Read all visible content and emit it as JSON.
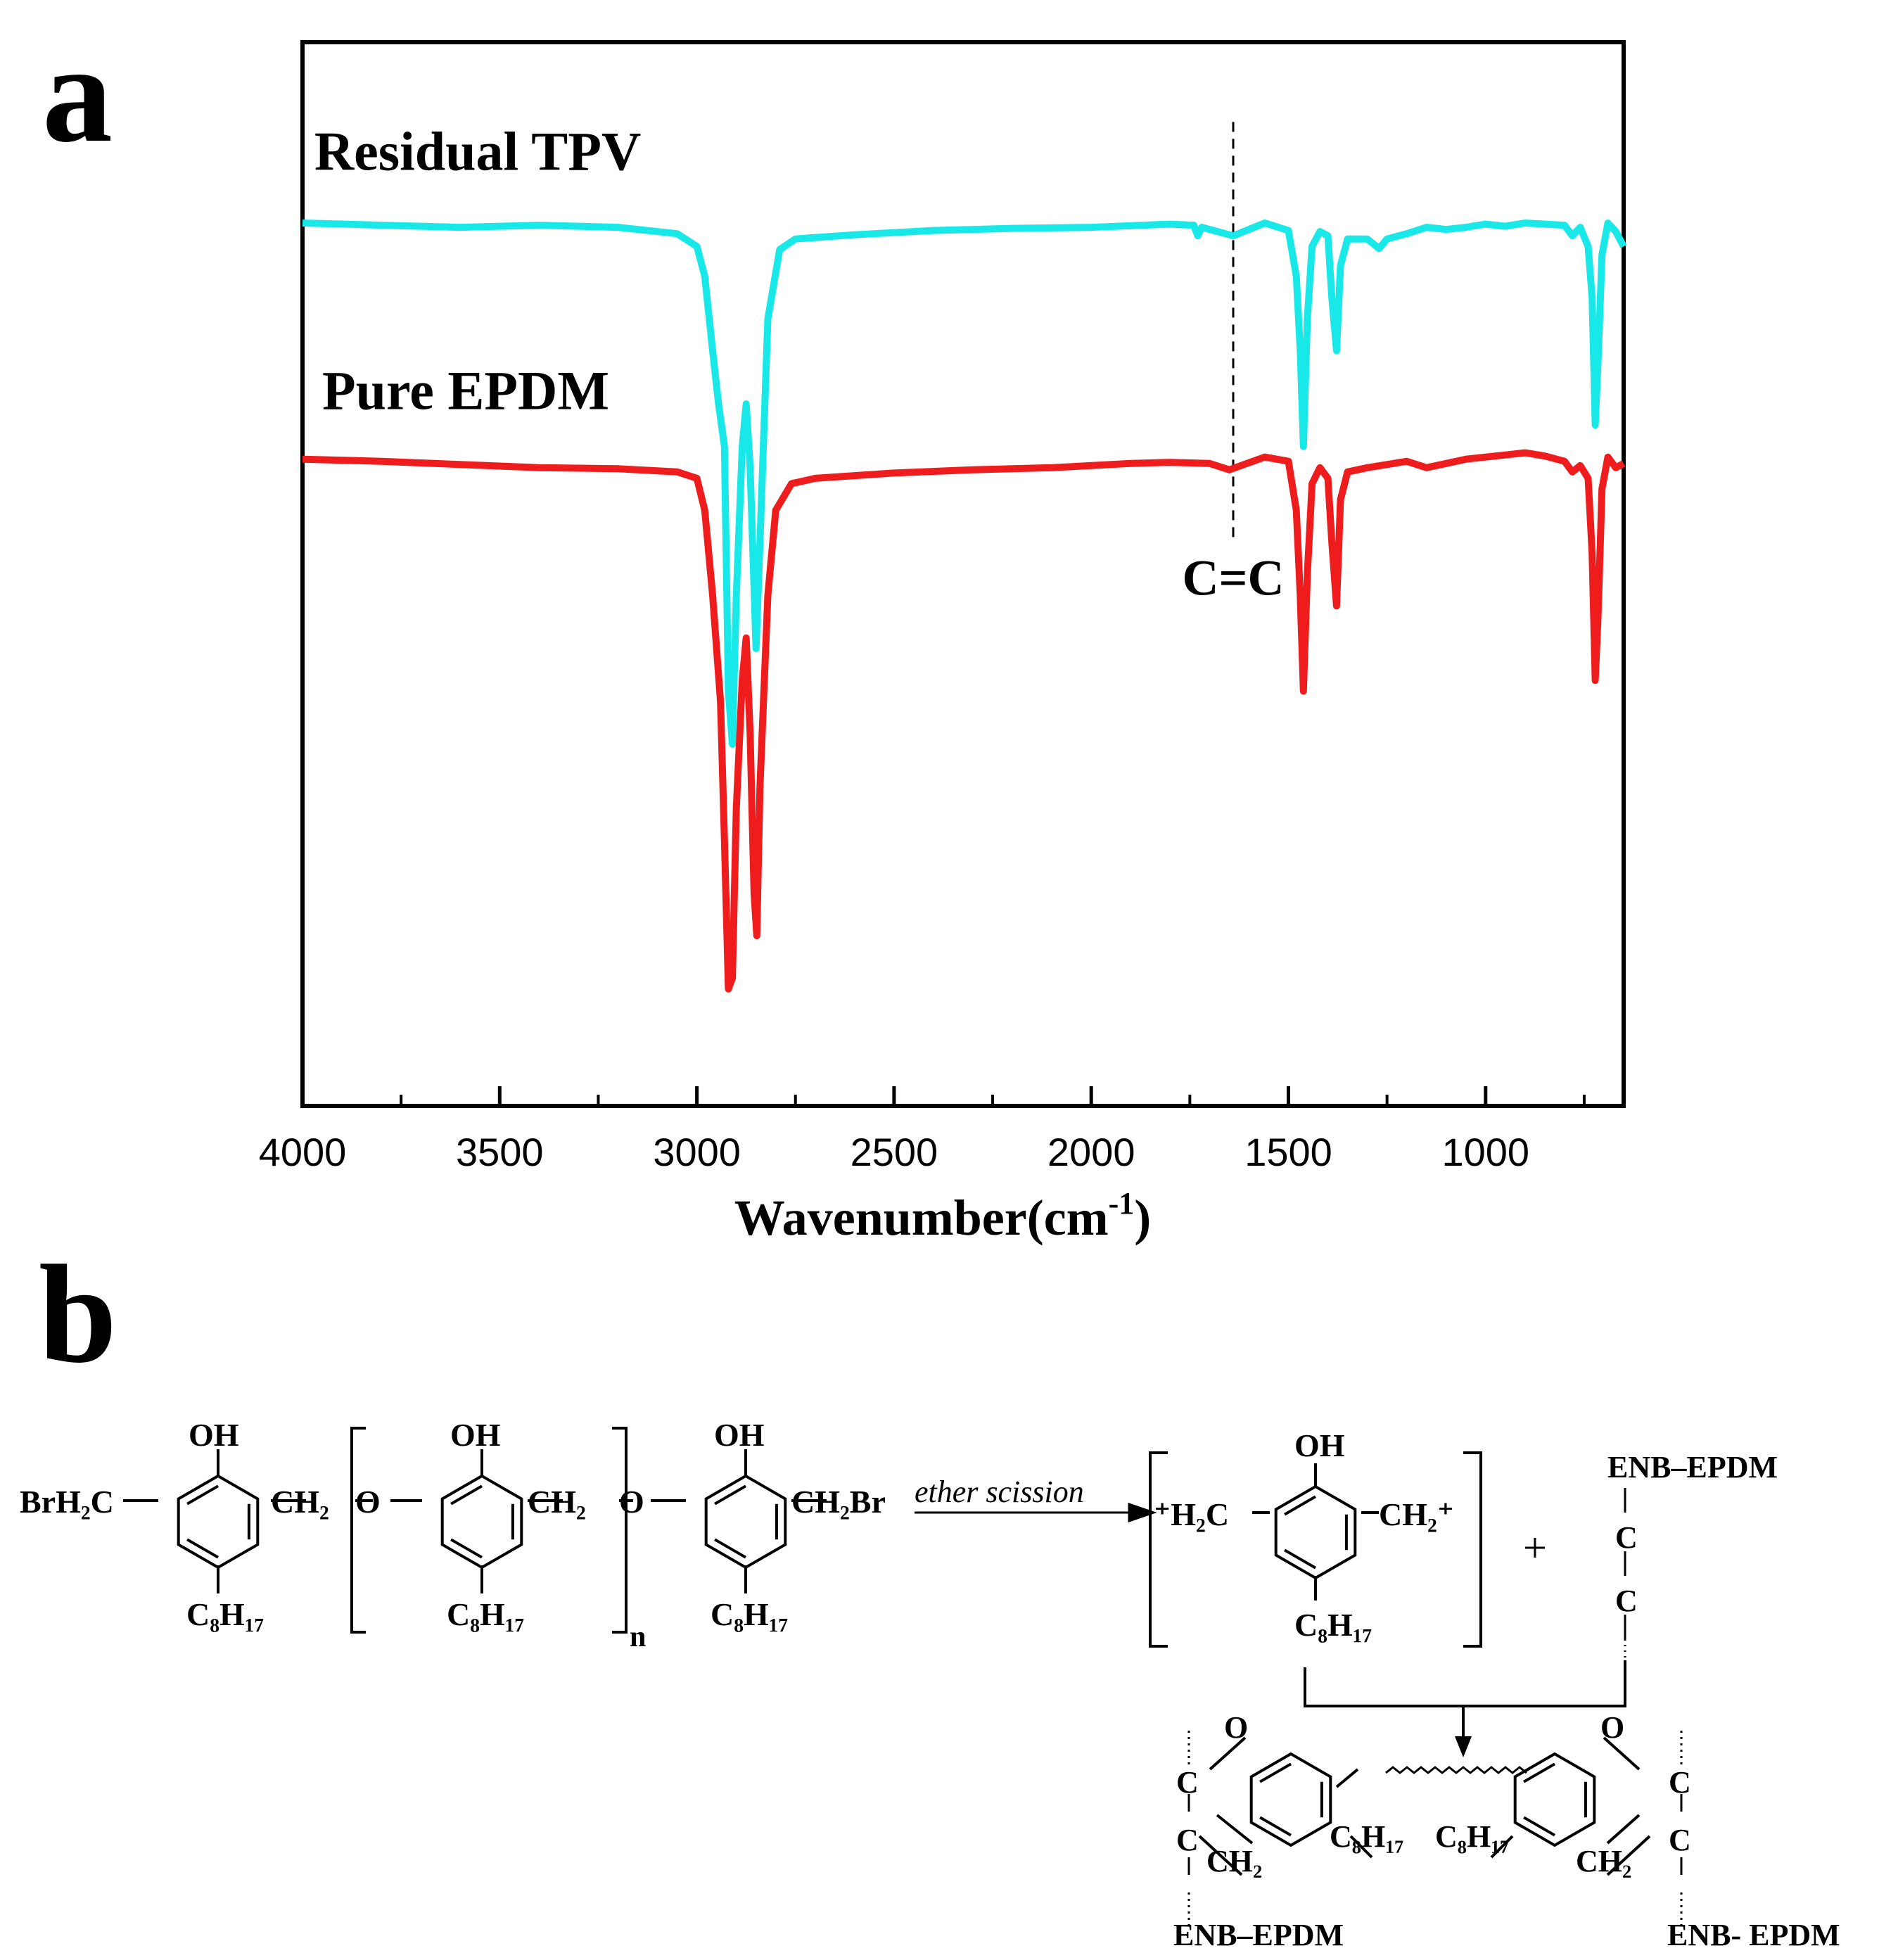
{
  "panel_a": {
    "letter": "a"
  },
  "panel_b": {
    "letter": "b"
  },
  "chart_data": {
    "type": "line",
    "title": "",
    "xlabel": "Wavenumber(cm",
    "xlabel_sup": "-1",
    "xlabel_close": ")",
    "ylabel": "",
    "xlim": [
      4000,
      650
    ],
    "x_reversed": true,
    "ylim": [
      0,
      1
    ],
    "xticks": [
      4000,
      3500,
      3000,
      2500,
      2000,
      1500,
      1000
    ],
    "xtick_labels": [
      "4000",
      "3500",
      "3000",
      "2500",
      "2000",
      "1500",
      "1000"
    ],
    "grid": false,
    "series": [
      {
        "name": "Residual TPV",
        "color": "#19e8e8",
        "label_at": [
          3970,
          0.88
        ],
        "points": [
          [
            4000,
            0.83
          ],
          [
            3800,
            0.828
          ],
          [
            3600,
            0.826
          ],
          [
            3400,
            0.828
          ],
          [
            3200,
            0.826
          ],
          [
            3050,
            0.82
          ],
          [
            3000,
            0.808
          ],
          [
            2980,
            0.78
          ],
          [
            2960,
            0.71
          ],
          [
            2945,
            0.66
          ],
          [
            2930,
            0.62
          ],
          [
            2920,
            0.39
          ],
          [
            2910,
            0.34
          ],
          [
            2900,
            0.48
          ],
          [
            2885,
            0.62
          ],
          [
            2875,
            0.66
          ],
          [
            2865,
            0.6
          ],
          [
            2850,
            0.43
          ],
          [
            2840,
            0.53
          ],
          [
            2820,
            0.74
          ],
          [
            2790,
            0.805
          ],
          [
            2750,
            0.815
          ],
          [
            2600,
            0.819
          ],
          [
            2400,
            0.823
          ],
          [
            2200,
            0.825
          ],
          [
            2000,
            0.826
          ],
          [
            1800,
            0.829
          ],
          [
            1740,
            0.828
          ],
          [
            1730,
            0.818
          ],
          [
            1720,
            0.826
          ],
          [
            1640,
            0.818
          ],
          [
            1560,
            0.83
          ],
          [
            1500,
            0.823
          ],
          [
            1480,
            0.78
          ],
          [
            1470,
            0.71
          ],
          [
            1462,
            0.62
          ],
          [
            1452,
            0.74
          ],
          [
            1440,
            0.808
          ],
          [
            1420,
            0.822
          ],
          [
            1400,
            0.818
          ],
          [
            1390,
            0.76
          ],
          [
            1378,
            0.71
          ],
          [
            1368,
            0.79
          ],
          [
            1350,
            0.815
          ],
          [
            1300,
            0.815
          ],
          [
            1270,
            0.806
          ],
          [
            1250,
            0.815
          ],
          [
            1200,
            0.82
          ],
          [
            1150,
            0.826
          ],
          [
            1100,
            0.824
          ],
          [
            1050,
            0.826
          ],
          [
            1000,
            0.829
          ],
          [
            950,
            0.827
          ],
          [
            900,
            0.83
          ],
          [
            850,
            0.829
          ],
          [
            800,
            0.828
          ],
          [
            780,
            0.818
          ],
          [
            760,
            0.826
          ],
          [
            740,
            0.808
          ],
          [
            730,
            0.76
          ],
          [
            722,
            0.64
          ],
          [
            715,
            0.7
          ],
          [
            705,
            0.8
          ],
          [
            690,
            0.83
          ],
          [
            670,
            0.822
          ],
          [
            650,
            0.808
          ]
        ]
      },
      {
        "name": "Pure EPDM",
        "color": "#ee1c1c",
        "label_at": [
          3950,
          0.655
        ],
        "points": [
          [
            4000,
            0.608
          ],
          [
            3800,
            0.606
          ],
          [
            3600,
            0.603
          ],
          [
            3400,
            0.6
          ],
          [
            3200,
            0.599
          ],
          [
            3050,
            0.596
          ],
          [
            3000,
            0.59
          ],
          [
            2980,
            0.56
          ],
          [
            2960,
            0.48
          ],
          [
            2940,
            0.38
          ],
          [
            2930,
            0.25
          ],
          [
            2920,
            0.11
          ],
          [
            2910,
            0.12
          ],
          [
            2900,
            0.28
          ],
          [
            2885,
            0.4
          ],
          [
            2875,
            0.44
          ],
          [
            2865,
            0.35
          ],
          [
            2855,
            0.2
          ],
          [
            2848,
            0.16
          ],
          [
            2840,
            0.3
          ],
          [
            2820,
            0.48
          ],
          [
            2800,
            0.56
          ],
          [
            2760,
            0.585
          ],
          [
            2700,
            0.59
          ],
          [
            2500,
            0.595
          ],
          [
            2300,
            0.598
          ],
          [
            2100,
            0.6
          ],
          [
            1900,
            0.604
          ],
          [
            1800,
            0.605
          ],
          [
            1700,
            0.604
          ],
          [
            1650,
            0.598
          ],
          [
            1560,
            0.61
          ],
          [
            1500,
            0.606
          ],
          [
            1480,
            0.56
          ],
          [
            1470,
            0.48
          ],
          [
            1462,
            0.39
          ],
          [
            1452,
            0.5
          ],
          [
            1440,
            0.585
          ],
          [
            1420,
            0.6
          ],
          [
            1400,
            0.59
          ],
          [
            1390,
            0.53
          ],
          [
            1378,
            0.47
          ],
          [
            1368,
            0.57
          ],
          [
            1350,
            0.596
          ],
          [
            1300,
            0.6
          ],
          [
            1250,
            0.603
          ],
          [
            1200,
            0.606
          ],
          [
            1150,
            0.6
          ],
          [
            1100,
            0.604
          ],
          [
            1050,
            0.608
          ],
          [
            1000,
            0.61
          ],
          [
            950,
            0.612
          ],
          [
            900,
            0.614
          ],
          [
            850,
            0.611
          ],
          [
            800,
            0.606
          ],
          [
            780,
            0.596
          ],
          [
            760,
            0.602
          ],
          [
            740,
            0.59
          ],
          [
            730,
            0.52
          ],
          [
            722,
            0.4
          ],
          [
            715,
            0.46
          ],
          [
            705,
            0.58
          ],
          [
            690,
            0.61
          ],
          [
            670,
            0.6
          ],
          [
            650,
            0.604
          ]
        ]
      }
    ],
    "annotations": [
      {
        "text": "C=C",
        "x": 1640,
        "y_top": 0.925,
        "y_bottom": 0.53,
        "style": "dashed-vertical-line"
      }
    ]
  },
  "scheme": {
    "label_brh2c": "BrH₂C",
    "label_ch2_a": "CH₂",
    "label_ch2_b": "CH₂",
    "label_ch2br": "CH₂Br",
    "label_o": "O",
    "label_oh": "OH",
    "label_c8h17": "C₈H₁₇",
    "label_n": "n",
    "arrow_label": "ether scission",
    "cation_left": "⁺H₂C",
    "cation_right": "CH₂⁺",
    "plus": "+",
    "enb_epdm": "ENB–EPDM",
    "enb_epdm_b": "ENB- EPDM",
    "atom_c": "C",
    "ch2_ring": "CH₂"
  }
}
